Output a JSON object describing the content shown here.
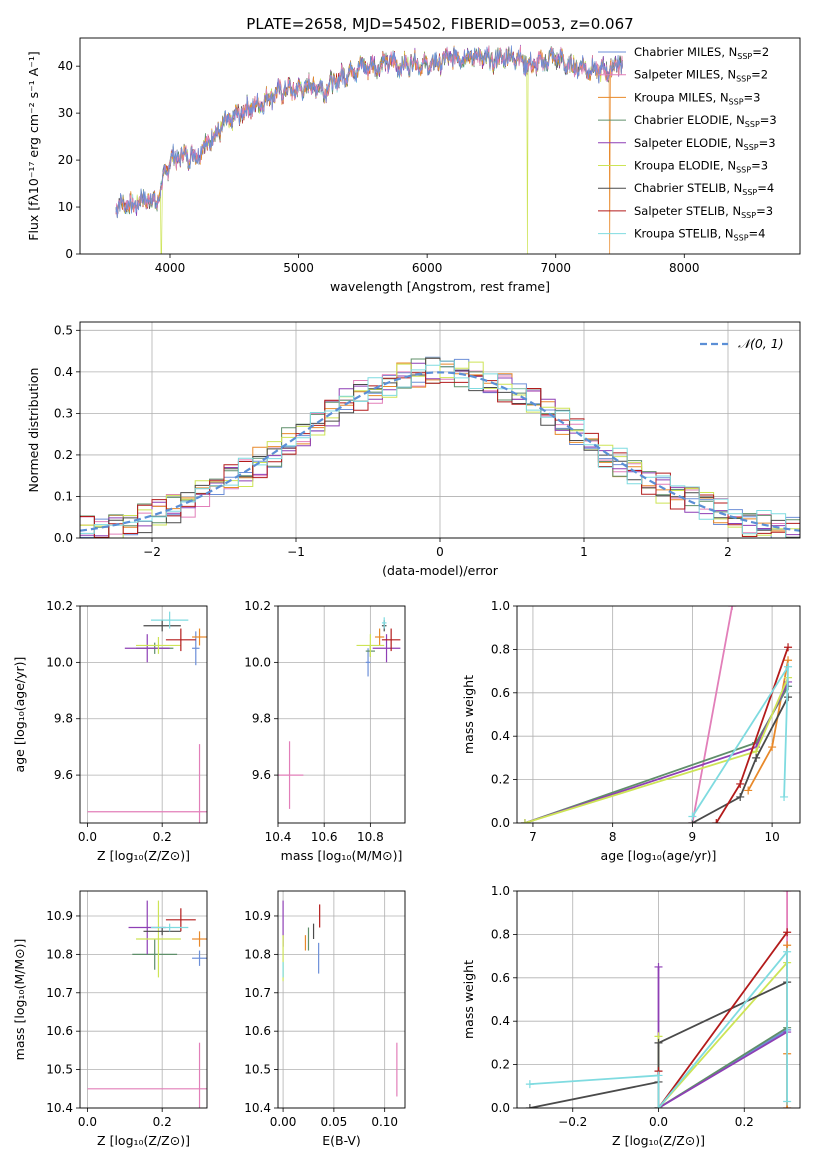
{
  "title": "PLATE=2658, MJD=54502, FIBERID=0053, z=0.067",
  "series": [
    {
      "key": "chab_miles",
      "label": "Chabrier MILES, N$_{SSP}$=2",
      "label_main": "Chabrier MILES, N",
      "label_sub": "SSP",
      "label_tail": "=2",
      "color": "#6c8fd8"
    },
    {
      "key": "salp_miles",
      "label": "Salpeter MILES, N$_{SSP}$=2",
      "label_main": "Salpeter MILES, N",
      "label_sub": "SSP",
      "label_tail": "=2",
      "color": "#e27fb9"
    },
    {
      "key": "krou_miles",
      "label": "Kroupa MILES, N$_{SSP}$=3",
      "label_main": "Kroupa MILES, N",
      "label_sub": "SSP",
      "label_tail": "=3",
      "color": "#e8892a"
    },
    {
      "key": "chab_elodie",
      "label": "Chabrier ELODIE, N$_{SSP}$=3",
      "label_main": "Chabrier ELODIE, N",
      "label_sub": "SSP",
      "label_tail": "=3",
      "color": "#5f8f6a"
    },
    {
      "key": "salp_elodie",
      "label": "Salpeter ELODIE, N$_{SSP}$=3",
      "label_main": "Salpeter ELODIE, N",
      "label_sub": "SSP",
      "label_tail": "=3",
      "color": "#8e3fb5"
    },
    {
      "key": "krou_elodie",
      "label": "Kroupa ELODIE, N$_{SSP}$=3",
      "label_main": "Kroupa ELODIE, N",
      "label_sub": "SSP",
      "label_tail": "=3",
      "color": "#cde456"
    },
    {
      "key": "chab_stelib",
      "label": "Chabrier STELIB, N$_{SSP}$=4",
      "label_main": "Chabrier STELIB, N",
      "label_sub": "SSP",
      "label_tail": "=4",
      "color": "#4a4a4a"
    },
    {
      "key": "salp_stelib",
      "label": "Salpeter STELIB, N$_{SSP}$=3",
      "label_main": "Salpeter STELIB, N",
      "label_sub": "SSP",
      "label_tail": "=3",
      "color": "#b31b1b"
    },
    {
      "key": "krou_stelib",
      "label": "Kroupa STELIB, N$_{SSP}$=4",
      "label_main": "Kroupa STELIB, N",
      "label_sub": "SSP",
      "label_tail": "=4",
      "color": "#7fdbe0"
    }
  ],
  "chart_data": [
    {
      "id": "spectrum",
      "type": "line",
      "xlabel": "wavelength [Angstrom, rest frame]",
      "ylabel": "Flux [f$_\\lambda$10$^{-17}$ erg cm$^{-2}$ s$^{-1}$ A$^{-1}$]",
      "ylabel_display": "Flux [fλ10⁻¹⁷ erg cm⁻² s⁻¹ A⁻¹]",
      "xlim": [
        3300,
        8900
      ],
      "ylim": [
        0,
        46
      ],
      "xticks": [
        4000,
        5000,
        6000,
        7000,
        8000
      ],
      "yticks": [
        0,
        10,
        20,
        30,
        40
      ],
      "grid": false,
      "legend": "top-right",
      "continuum_x": [
        3580,
        3650,
        3700,
        3800,
        3900,
        3950,
        4000,
        4100,
        4200,
        4300,
        4400,
        4500,
        4600,
        4700,
        4800,
        4900,
        5000,
        5100,
        5200,
        5300,
        5400,
        5500,
        5600,
        5700,
        5800,
        5900,
        6000,
        6100,
        6200,
        6300,
        6400,
        6500,
        6600,
        6700,
        6800,
        6900,
        7000,
        7100,
        7200,
        7300,
        7400,
        7500,
        7600,
        7700,
        7800,
        7900,
        8000,
        8100,
        8200,
        8300,
        8400,
        8500,
        8600,
        8700,
        8800
      ],
      "continuum_y": [
        10,
        11,
        10,
        12,
        11,
        16,
        20,
        21,
        21,
        24,
        27,
        29,
        31,
        32,
        34,
        35,
        35,
        36,
        35,
        37,
        39,
        40,
        40,
        41,
        40,
        41,
        40,
        41,
        42,
        42,
        42,
        41,
        42,
        42,
        40,
        41,
        42,
        40,
        40,
        39,
        39,
        41,
        41,
        42,
        41,
        40,
        41,
        40,
        40,
        40,
        40,
        40,
        40,
        40,
        40
      ],
      "dips": [
        {
          "at": 3933,
          "y": 0,
          "series": "krou_elodie"
        },
        {
          "at": 6780,
          "y": 0,
          "series": "krou_elodie"
        },
        {
          "at": 7420,
          "y": 0,
          "series": "krou_miles"
        }
      ]
    },
    {
      "id": "residual_hist",
      "type": "histogram",
      "xlabel": "(data-model)/error",
      "ylabel": "Normed distribution",
      "xlim": [
        -2.5,
        2.5
      ],
      "ylim": [
        0,
        0.52
      ],
      "xticks": [
        -2,
        -1,
        0,
        1,
        2
      ],
      "yticks": [
        0.0,
        0.1,
        0.2,
        0.3,
        0.4,
        0.5
      ],
      "bin_width": 0.1,
      "grid": true,
      "legend": "top-right",
      "reference_curve": {
        "label": "$\\mathcal{N}(0,1)$",
        "label_display": "𝒩(0, 1)",
        "color": "#5b8fd6",
        "type": "normal",
        "mean": 0,
        "sigma": 1
      }
    },
    {
      "id": "age_vs_Z",
      "type": "scatter",
      "xlabel": "Z [log$_{10}$($Z/Z_\\odot$)]",
      "xlabel_display": "Z [log₁₀(Z/Z⊙)]",
      "ylabel": "age  [log$_{10}$($age/yr$)]",
      "ylabel_display": "age  [log₁₀(age/yr)]",
      "xlim": [
        -0.02,
        0.32
      ],
      "ylim": [
        9.43,
        10.2
      ],
      "xticks": [
        0.0,
        0.2
      ],
      "yticks": [
        9.6,
        9.8,
        10.0,
        10.2
      ],
      "grid": true,
      "points": [
        {
          "series": "chab_miles",
          "x": 0.29,
          "y": 10.05,
          "xerr": 0.01,
          "yerr": 0.06
        },
        {
          "series": "salp_miles",
          "x": 0.3,
          "y": 9.47,
          "xerr": 0.3,
          "yerr": 0.24
        },
        {
          "series": "krou_miles",
          "x": 0.3,
          "y": 10.09,
          "xerr": 0.02,
          "yerr": 0.03
        },
        {
          "series": "chab_elodie",
          "x": 0.18,
          "y": 10.05,
          "xerr": 0.05,
          "yerr": 0.02
        },
        {
          "series": "salp_elodie",
          "x": 0.16,
          "y": 10.05,
          "xerr": 0.06,
          "yerr": 0.05
        },
        {
          "series": "krou_elodie",
          "x": 0.19,
          "y": 10.06,
          "xerr": 0.06,
          "yerr": 0.03
        },
        {
          "series": "chab_stelib",
          "x": 0.2,
          "y": 10.13,
          "xerr": 0.05,
          "yerr": 0.02
        },
        {
          "series": "salp_stelib",
          "x": 0.25,
          "y": 10.08,
          "xerr": 0.04,
          "yerr": 0.04
        },
        {
          "series": "krou_stelib",
          "x": 0.22,
          "y": 10.15,
          "xerr": 0.05,
          "yerr": 0.03
        }
      ]
    },
    {
      "id": "age_vs_mass",
      "type": "scatter",
      "xlabel": "mass [log$_{10}$($M/M_\\odot$)]",
      "xlabel_display": "mass [log₁₀(M/M⊙)]",
      "xlim": [
        10.4,
        10.95
      ],
      "ylim": [
        9.43,
        10.2
      ],
      "xticks": [
        10.4,
        10.6,
        10.8
      ],
      "yticks": [
        9.6,
        9.8,
        10.0,
        10.2
      ],
      "grid": true,
      "points": [
        {
          "series": "chab_miles",
          "x": 10.79,
          "y": 10.0,
          "xerr": 0.01,
          "yerr": 0.05
        },
        {
          "series": "salp_miles",
          "x": 10.45,
          "y": 9.6,
          "xerr": 0.06,
          "yerr": 0.12
        },
        {
          "series": "krou_miles",
          "x": 10.84,
          "y": 10.09,
          "xerr": 0.02,
          "yerr": 0.03
        },
        {
          "series": "chab_elodie",
          "x": 10.8,
          "y": 10.04,
          "xerr": 0.02,
          "yerr": 0.02
        },
        {
          "series": "salp_elodie",
          "x": 10.87,
          "y": 10.05,
          "xerr": 0.06,
          "yerr": 0.05
        },
        {
          "series": "krou_elodie",
          "x": 10.8,
          "y": 10.06,
          "xerr": 0.06,
          "yerr": 0.04
        },
        {
          "series": "chab_stelib",
          "x": 10.86,
          "y": 10.13,
          "xerr": 0.01,
          "yerr": 0.02
        },
        {
          "series": "salp_stelib",
          "x": 10.89,
          "y": 10.08,
          "xerr": 0.04,
          "yerr": 0.04
        },
        {
          "series": "krou_stelib",
          "x": 10.86,
          "y": 10.14,
          "xerr": 0.01,
          "yerr": 0.02
        }
      ]
    },
    {
      "id": "massweight_vs_age",
      "type": "line",
      "xlabel": "age  [log$_{10}$($age/yr$)]",
      "xlabel_display": "age  [log₁₀(age/yr)]",
      "ylabel": "mass weight",
      "xlim": [
        6.8,
        10.35
      ],
      "ylim": [
        0,
        1.0
      ],
      "xticks": [
        7,
        8,
        9,
        10
      ],
      "yticks": [
        0.0,
        0.2,
        0.4,
        0.6,
        0.8,
        1.0
      ],
      "grid": true,
      "lines": [
        {
          "series": "salp_miles",
          "x": [
            9.0,
            9.5
          ],
          "y": [
            0.0,
            1.0
          ]
        },
        {
          "series": "chab_miles",
          "x": [
            9.8,
            10.2
          ],
          "y": [
            0.37,
            0.63
          ]
        },
        {
          "series": "krou_miles",
          "x": [
            9.7,
            10.0,
            10.2
          ],
          "y": [
            0.15,
            0.35,
            0.75
          ]
        },
        {
          "series": "chab_elodie",
          "x": [
            6.9,
            9.8,
            10.2
          ],
          "y": [
            0.0,
            0.37,
            0.63
          ]
        },
        {
          "series": "salp_elodie",
          "x": [
            6.9,
            9.8,
            10.2
          ],
          "y": [
            0.0,
            0.35,
            0.65
          ]
        },
        {
          "series": "krou_elodie",
          "x": [
            6.9,
            9.8,
            10.2
          ],
          "y": [
            0.0,
            0.33,
            0.67
          ]
        },
        {
          "series": "chab_stelib",
          "x": [
            9.0,
            9.6,
            9.8,
            10.2
          ],
          "y": [
            0.0,
            0.12,
            0.3,
            0.58
          ]
        },
        {
          "series": "salp_stelib",
          "x": [
            9.3,
            9.6,
            10.2
          ],
          "y": [
            0.0,
            0.18,
            0.81
          ]
        },
        {
          "series": "krou_stelib",
          "x": [
            9.0,
            10.2,
            10.15
          ],
          "y": [
            0.03,
            0.72,
            0.12
          ]
        }
      ]
    },
    {
      "id": "mass_vs_Z",
      "type": "scatter",
      "xlabel": "Z [log$_{10}$($Z/Z_\\odot$)]",
      "xlabel_display": "Z [log₁₀(Z/Z⊙)]",
      "ylabel": "mass [log$_{10}$($M/M_\\odot$)]",
      "ylabel_display": "mass [log₁₀(M/M⊙)]",
      "xlim": [
        -0.02,
        0.32
      ],
      "ylim": [
        10.4,
        10.965
      ],
      "xticks": [
        0.0,
        0.2
      ],
      "yticks": [
        10.4,
        10.5,
        10.6,
        10.7,
        10.8,
        10.9
      ],
      "grid": true,
      "points": [
        {
          "series": "chab_miles",
          "x": 0.3,
          "y": 10.79,
          "xerr": 0.02,
          "yerr": 0.02
        },
        {
          "series": "salp_miles",
          "x": 0.3,
          "y": 10.45,
          "xerr": 0.3,
          "yerr": 0.12
        },
        {
          "series": "krou_miles",
          "x": 0.3,
          "y": 10.84,
          "xerr": 0.02,
          "yerr": 0.02
        },
        {
          "series": "chab_elodie",
          "x": 0.18,
          "y": 10.8,
          "xerr": 0.06,
          "yerr": 0.04
        },
        {
          "series": "salp_elodie",
          "x": 0.16,
          "y": 10.87,
          "xerr": 0.05,
          "yerr": 0.07
        },
        {
          "series": "krou_elodie",
          "x": 0.19,
          "y": 10.84,
          "xerr": 0.06,
          "yerr": 0.1
        },
        {
          "series": "chab_stelib",
          "x": 0.2,
          "y": 10.86,
          "xerr": 0.05,
          "yerr": 0.01
        },
        {
          "series": "salp_stelib",
          "x": 0.25,
          "y": 10.89,
          "xerr": 0.04,
          "yerr": 0.03
        },
        {
          "series": "krou_stelib",
          "x": 0.22,
          "y": 10.87,
          "xerr": 0.05,
          "yerr": 0.01
        }
      ]
    },
    {
      "id": "mass_vs_ebv",
      "type": "scatter",
      "xlabel": "E(B-V)",
      "xlim": [
        -0.005,
        0.12
      ],
      "ylim": [
        10.4,
        10.965
      ],
      "xticks": [
        0.0,
        0.05,
        0.1
      ],
      "yticks": [
        10.4,
        10.5,
        10.6,
        10.7,
        10.8,
        10.9
      ],
      "grid": true,
      "points": [
        {
          "series": "chab_miles",
          "x": 0.035,
          "y": 10.79,
          "xerr": 0.0,
          "yerr": 0.04
        },
        {
          "series": "salp_miles",
          "x": 0.112,
          "y": 10.5,
          "xerr": 0.0,
          "yerr": 0.07
        },
        {
          "series": "krou_miles",
          "x": 0.022,
          "y": 10.83,
          "xerr": 0.0,
          "yerr": 0.02
        },
        {
          "series": "chab_elodie",
          "x": 0.025,
          "y": 10.84,
          "xerr": 0.0,
          "yerr": 0.03
        },
        {
          "series": "salp_elodie",
          "x": 0.0,
          "y": 10.88,
          "xerr": 0.0,
          "yerr": 0.06
        },
        {
          "series": "krou_elodie",
          "x": 0.0,
          "y": 10.79,
          "xerr": 0.0,
          "yerr": 0.06
        },
        {
          "series": "chab_stelib",
          "x": 0.03,
          "y": 10.86,
          "xerr": 0.0,
          "yerr": 0.02
        },
        {
          "series": "salp_stelib",
          "x": 0.036,
          "y": 10.9,
          "xerr": 0.0,
          "yerr": 0.03
        },
        {
          "series": "krou_stelib",
          "x": 0.0,
          "y": 10.76,
          "xerr": 0.0,
          "yerr": 0.02
        }
      ]
    },
    {
      "id": "massweight_vs_Z",
      "type": "line",
      "xlabel": "Z [log$_{10}$($Z/Z_\\odot$)]",
      "xlabel_display": "Z [log₁₀(Z/Z⊙)]",
      "ylabel": "mass weight",
      "xlim": [
        -0.33,
        0.33
      ],
      "ylim": [
        0,
        1.0
      ],
      "xticks": [
        -0.2,
        0.0,
        0.2
      ],
      "yticks": [
        0.0,
        0.2,
        0.4,
        0.6,
        0.8,
        1.0
      ],
      "grid": true,
      "lines": [
        {
          "series": "salp_miles",
          "x": [
            0.3,
            0.3
          ],
          "y": [
            0.0,
            1.0
          ]
        },
        {
          "series": "krou_miles",
          "x": [
            0.3,
            0.3,
            0.3
          ],
          "y": [
            0.25,
            0.75,
            0.0
          ]
        },
        {
          "series": "chab_miles",
          "x": [
            0.0,
            0.3
          ],
          "y": [
            0.0,
            0.36
          ]
        },
        {
          "series": "chab_elodie",
          "x": [
            0.0,
            0.3
          ],
          "y": [
            0.0,
            0.37
          ]
        },
        {
          "series": "salp_elodie",
          "x": [
            0.0,
            0.0,
            0.3
          ],
          "y": [
            0.65,
            0.0,
            0.35
          ]
        },
        {
          "series": "krou_elodie",
          "x": [
            0.0,
            0.0,
            0.3
          ],
          "y": [
            0.33,
            0.0,
            0.67
          ]
        },
        {
          "series": "chab_stelib",
          "x": [
            -0.3,
            0.0,
            0.0,
            0.3
          ],
          "y": [
            0.0,
            0.12,
            0.3,
            0.58
          ]
        },
        {
          "series": "salp_stelib",
          "x": [
            0.0,
            0.0,
            0.3
          ],
          "y": [
            0.17,
            0.0,
            0.81
          ]
        },
        {
          "series": "krou_stelib",
          "x": [
            -0.3,
            0.0,
            0.0,
            0.3,
            0.3
          ],
          "y": [
            0.11,
            0.15,
            0.0,
            0.72,
            0.03
          ]
        }
      ]
    }
  ]
}
